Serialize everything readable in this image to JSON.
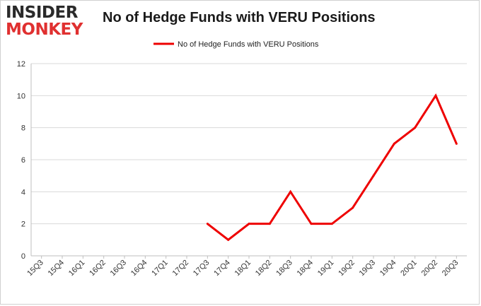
{
  "logo": {
    "line1": "INSIDER",
    "line2": "MONKEY"
  },
  "chart_data": {
    "type": "line",
    "title": "No of Hedge Funds with VERU Positions",
    "xlabel": "",
    "ylabel": "",
    "categories": [
      "15Q3",
      "15Q4",
      "16Q1",
      "16Q2",
      "16Q3",
      "16Q4",
      "17Q1",
      "17Q2",
      "17Q3",
      "17Q4",
      "18Q1",
      "18Q2",
      "18Q3",
      "18Q4",
      "19Q1",
      "19Q2",
      "19Q3",
      "19Q4",
      "20Q1",
      "20Q2",
      "20Q3"
    ],
    "series": [
      {
        "name": "No of Hedge Funds with VERU  Positions",
        "values": [
          null,
          null,
          null,
          null,
          null,
          null,
          null,
          null,
          2,
          1,
          2,
          2,
          4,
          2,
          2,
          3,
          5,
          7,
          8,
          10,
          7
        ]
      }
    ],
    "ylim": [
      0,
      12
    ],
    "yticks": [
      0,
      2,
      4,
      6,
      8,
      10,
      12
    ],
    "grid": true,
    "legend": "top-center",
    "colors": {
      "line": "#ee0000",
      "grid": "#d9d9d9",
      "axis": "#bfbfbf"
    }
  }
}
